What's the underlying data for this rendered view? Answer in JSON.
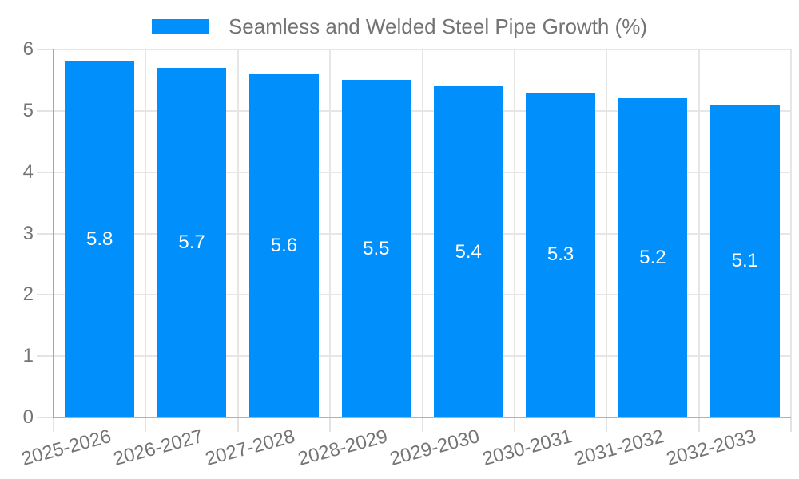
{
  "legend": {
    "label": "Seamless and Welded Steel Pipe Growth (%)",
    "swatch_color": "#008ffb"
  },
  "chart_data": {
    "type": "bar",
    "title": "Seamless and Welded Steel Pipe Growth (%)",
    "categories": [
      "2025-2026",
      "2026-2027",
      "2027-2028",
      "2028-2029",
      "2029-2030",
      "2030-2031",
      "2031-2032",
      "2032-2033"
    ],
    "values": [
      5.8,
      5.7,
      5.6,
      5.5,
      5.4,
      5.3,
      5.2,
      5.1
    ],
    "bar_labels": [
      "5.8",
      "5.7",
      "5.6",
      "5.5",
      "5.4",
      "5.3",
      "5.2",
      "5.1"
    ],
    "xlabel": "",
    "ylabel": "",
    "ylim": [
      0,
      6
    ],
    "yticks": [
      0,
      1,
      2,
      3,
      4,
      5,
      6
    ],
    "grid": true,
    "legend_position": "top",
    "colors": {
      "bar": "#008ffb",
      "bar_label": "#ffffff",
      "axis_text": "#757575",
      "legend_text": "#737373",
      "grid_line": "#e6e6e6",
      "tick_line": "#e3e3e3",
      "y_axis_line": "#a6a6a6",
      "x_axis_line": "#b2b2b2",
      "background": "#ffffff"
    }
  }
}
